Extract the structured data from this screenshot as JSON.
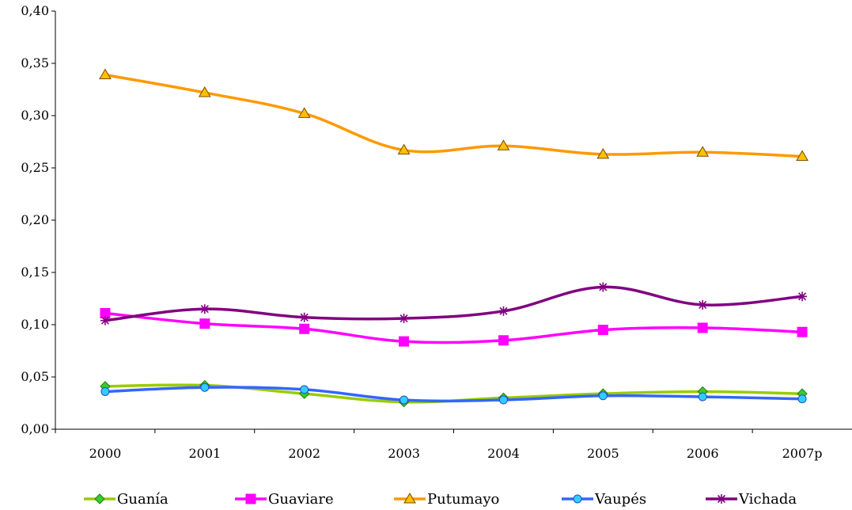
{
  "chart_data": {
    "type": "line",
    "categories": [
      "2000",
      "2001",
      "2002",
      "2003",
      "2004",
      "2005",
      "2006",
      "2007p"
    ],
    "ylim": [
      0,
      0.4
    ],
    "yticks": [
      "0,00",
      "0,05",
      "0,10",
      "0,15",
      "0,20",
      "0,25",
      "0,30",
      "0,35",
      "0,40"
    ],
    "grid": false,
    "legend_position": "bottom",
    "series": [
      {
        "name": "Guanía",
        "color": "#99CC00",
        "marker": "diamond",
        "marker_color": "#33CC33",
        "values": [
          0.041,
          0.042,
          0.034,
          0.026,
          0.03,
          0.034,
          0.036,
          0.034
        ]
      },
      {
        "name": "Guaviare",
        "color": "#FF00FF",
        "marker": "square",
        "marker_color": "#FF00FF",
        "values": [
          0.111,
          0.101,
          0.096,
          0.084,
          0.085,
          0.095,
          0.097,
          0.093
        ]
      },
      {
        "name": "Putumayo",
        "color": "#FF9900",
        "marker": "triangle",
        "marker_color": "#FFC000",
        "values": [
          0.339,
          0.322,
          0.302,
          0.267,
          0.271,
          0.263,
          0.265,
          0.261
        ]
      },
      {
        "name": "Vaupés",
        "color": "#3366FF",
        "marker": "circle",
        "marker_color": "#33CCFF",
        "values": [
          0.036,
          0.04,
          0.038,
          0.028,
          0.028,
          0.032,
          0.031,
          0.029
        ]
      },
      {
        "name": "Vichada",
        "color": "#800080",
        "marker": "asterisk",
        "marker_color": "#800080",
        "values": [
          0.104,
          0.115,
          0.107,
          0.106,
          0.113,
          0.136,
          0.119,
          0.127
        ]
      }
    ]
  }
}
